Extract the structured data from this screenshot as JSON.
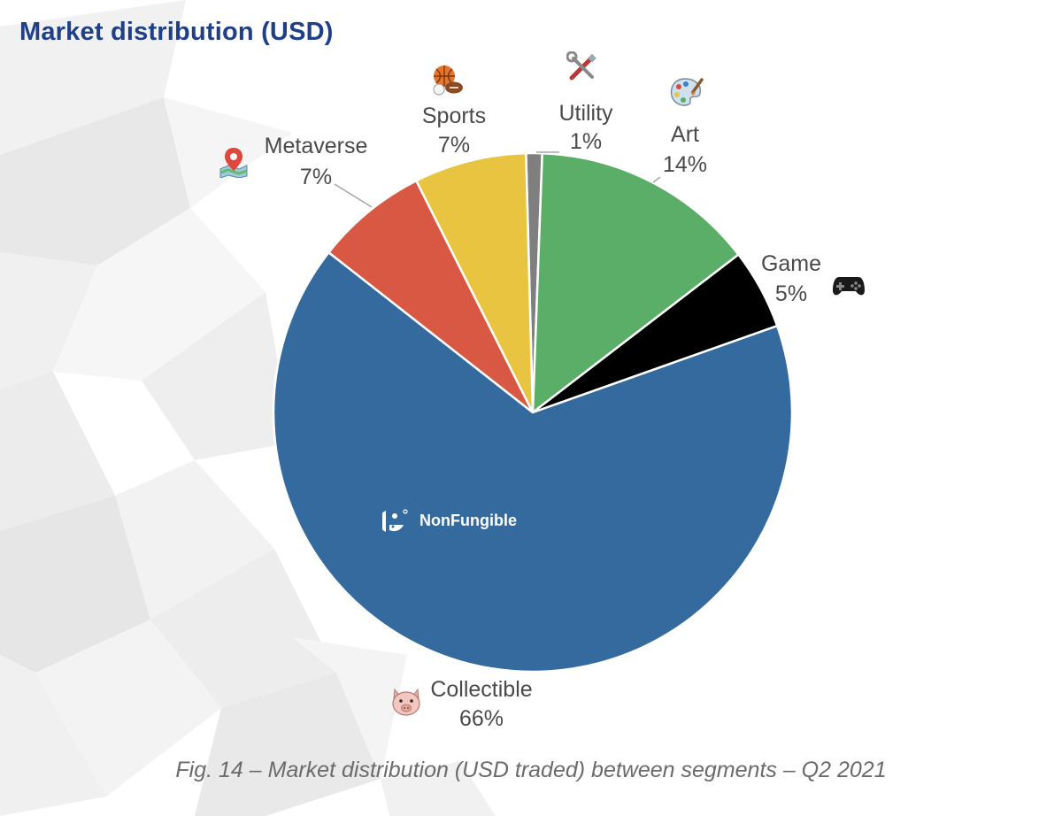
{
  "header": {
    "title": "Market distribution (USD)"
  },
  "caption": "Fig. 14 – Market distribution (USD traded) between segments – Q2 2021",
  "watermark": {
    "brand": "NonFungible"
  },
  "chart_data": {
    "type": "pie",
    "unit": "%",
    "title": "",
    "slices": [
      {
        "label": "Utility",
        "value": 1,
        "display": "1%",
        "color": "#7f7f7f",
        "icon": "tools-icon"
      },
      {
        "label": "Art",
        "value": 14,
        "display": "14%",
        "color": "#5aae67",
        "icon": "palette-icon"
      },
      {
        "label": "Game",
        "value": 5,
        "display": "5%",
        "color": "#000000",
        "icon": "gamepad-icon"
      },
      {
        "label": "Collectible",
        "value": 66,
        "display": "66%",
        "color": "#346a9e",
        "icon": "pig-icon"
      },
      {
        "label": "Metaverse",
        "value": 7,
        "display": "7%",
        "color": "#d85844",
        "icon": "map-pin-icon"
      },
      {
        "label": "Sports",
        "value": 7,
        "display": "7%",
        "color": "#e8c440",
        "icon": "ball-icon"
      }
    ],
    "legend": "none"
  }
}
